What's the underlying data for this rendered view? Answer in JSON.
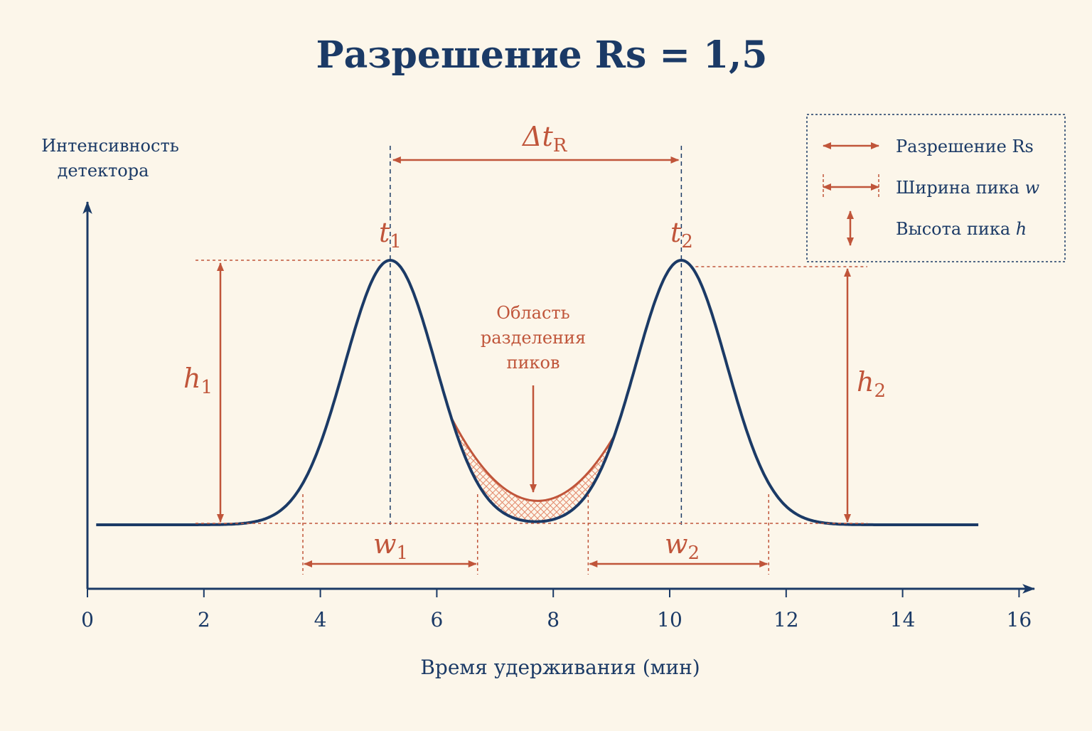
{
  "chart_data": {
    "type": "line",
    "title": "Разрешение Rs = 1,5",
    "xlabel": "Время удерживания (мин)",
    "ylabel": [
      "Интенсивность",
      "детектора"
    ],
    "xlim": [
      0,
      16
    ],
    "xticks": [
      0,
      2,
      4,
      6,
      8,
      10,
      12,
      14,
      16
    ],
    "series": [
      {
        "peaks": [
          {
            "center": 5.2,
            "sigma": 0.78,
            "height": 1.0
          },
          {
            "center": 10.2,
            "sigma": 0.78,
            "height": 1.0
          }
        ],
        "x_range": [
          0.15,
          15.3
        ]
      }
    ],
    "annotations": {
      "delta_t": {
        "symbol": "Δt",
        "sub": "R"
      },
      "t1": {
        "symbol": "t",
        "sub": "1",
        "x": 5.2
      },
      "t2": {
        "symbol": "t",
        "sub": "2",
        "x": 10.2
      },
      "h1": {
        "symbol": "h",
        "sub": "1"
      },
      "h2": {
        "symbol": "h",
        "sub": "2"
      },
      "w1": {
        "symbol": "w",
        "sub": "1",
        "from": 3.7,
        "to": 6.7
      },
      "w2": {
        "symbol": "w",
        "sub": "2",
        "from": 8.6,
        "to": 11.7
      },
      "overlap_label": [
        "Область",
        "разделения",
        "пиков"
      ],
      "overlap_range": [
        6.25,
        9.05
      ]
    },
    "legend": {
      "position": "top-right",
      "items": [
        {
          "text": "Разрешение Rs",
          "icon": "double-arrow-icon"
        },
        {
          "text": "Ширина пика ",
          "italic": "w",
          "icon": "width-arrow-icon"
        },
        {
          "text": "Высота пика ",
          "italic": "h",
          "icon": "vertical-arrow-icon"
        }
      ]
    },
    "colors": {
      "curve": "#1b3a66",
      "accent": "#c0553a",
      "background": "#fcf6ea"
    }
  }
}
